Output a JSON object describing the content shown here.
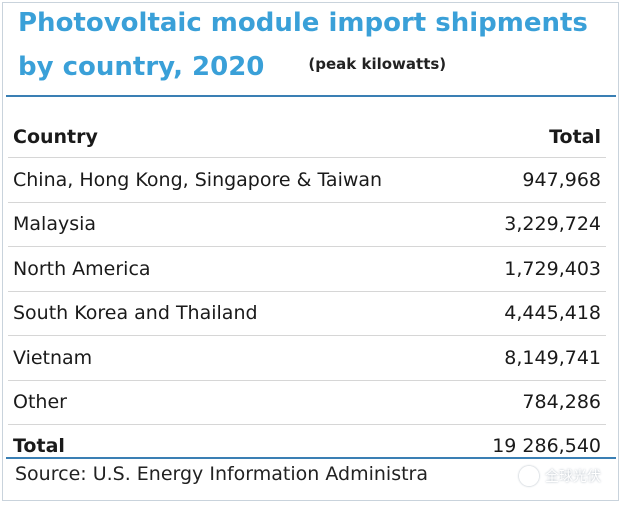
{
  "title": {
    "line1": "Photovoltaic module import shipments",
    "line2": "by country, 2020",
    "unit": "(peak kilowatts)"
  },
  "table": {
    "headers": {
      "country": "Country",
      "total": "Total"
    },
    "rows": [
      {
        "country": "China, Hong Kong, Singapore & Taiwan",
        "total": "947,968"
      },
      {
        "country": "Malaysia",
        "total": "3,229,724"
      },
      {
        "country": "North America",
        "total": "1,729,403"
      },
      {
        "country": "South Korea and Thailand",
        "total": "4,445,418"
      },
      {
        "country": "Vietnam",
        "total": "8,149,741"
      },
      {
        "country": "Other",
        "total": "784,286"
      }
    ],
    "total_row": {
      "country": "Total",
      "total": "19 286,540"
    }
  },
  "source": "Source: U.S. Energy Information Administra",
  "watermark": {
    "text": "全球光伏",
    "icon": "wechat-icon"
  },
  "colors": {
    "title": "#3aa0d8",
    "rule": "#3a7fb4",
    "border": "#c9d3dc"
  }
}
